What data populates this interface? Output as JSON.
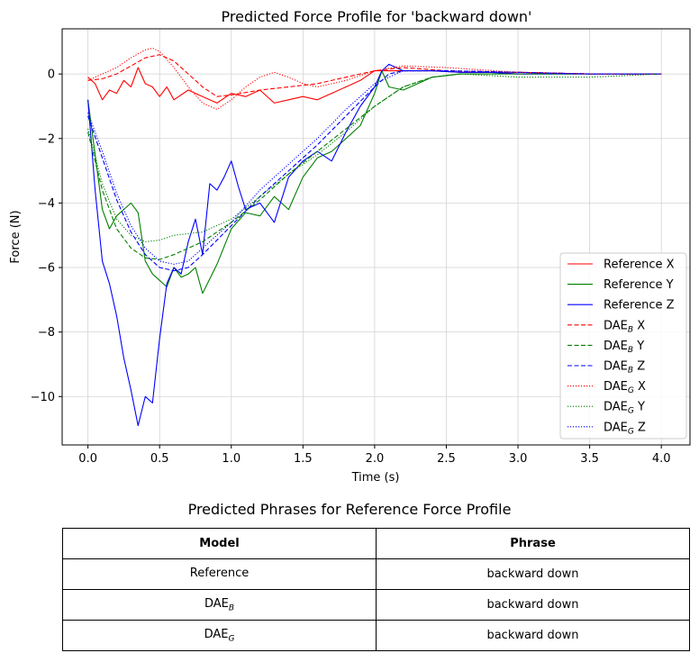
{
  "chart_data": {
    "type": "line",
    "title": "Predicted Force Profile for 'backward down'",
    "xlabel": "Time (s)",
    "ylabel": "Force (N)",
    "xlim": [
      -0.18,
      4.2
    ],
    "ylim": [
      -11.5,
      1.4
    ],
    "xticks": [
      0.0,
      0.5,
      1.0,
      1.5,
      2.0,
      2.5,
      3.0,
      3.5,
      4.0
    ],
    "yticks": [
      0,
      -2,
      -4,
      -6,
      -8,
      -10
    ],
    "xtick_labels": [
      "0.0",
      "0.5",
      "1.0",
      "1.5",
      "2.0",
      "2.5",
      "3.0",
      "3.5",
      "4.0"
    ],
    "ytick_labels": [
      "0",
      "−2",
      "−4",
      "−6",
      "−8",
      "−10"
    ],
    "grid": true,
    "legend_position": "lower-right",
    "series": [
      {
        "name": "Reference X",
        "color": "#ff0000",
        "style": "solid",
        "x": [
          0,
          0.05,
          0.1,
          0.15,
          0.2,
          0.25,
          0.3,
          0.35,
          0.4,
          0.45,
          0.5,
          0.55,
          0.6,
          0.7,
          0.8,
          0.9,
          1.0,
          1.1,
          1.2,
          1.3,
          1.4,
          1.5,
          1.6,
          1.7,
          1.8,
          1.9,
          2.0,
          2.1,
          2.2,
          2.4,
          2.6,
          2.8,
          3.0,
          3.5,
          4.0
        ],
        "y": [
          -0.1,
          -0.3,
          -0.8,
          -0.5,
          -0.6,
          -0.2,
          -0.4,
          0.2,
          -0.3,
          -0.4,
          -0.7,
          -0.4,
          -0.8,
          -0.5,
          -0.7,
          -0.9,
          -0.6,
          -0.7,
          -0.5,
          -0.9,
          -0.8,
          -0.7,
          -0.8,
          -0.6,
          -0.4,
          -0.2,
          0.1,
          0.1,
          0.1,
          0.1,
          0.05,
          0.05,
          0.05,
          0.0,
          0.0
        ]
      },
      {
        "name": "Reference Y",
        "color": "#008000",
        "style": "solid",
        "x": [
          0,
          0.05,
          0.1,
          0.15,
          0.2,
          0.25,
          0.3,
          0.35,
          0.4,
          0.45,
          0.5,
          0.55,
          0.6,
          0.65,
          0.7,
          0.75,
          0.8,
          0.9,
          1.0,
          1.1,
          1.2,
          1.3,
          1.4,
          1.5,
          1.6,
          1.7,
          1.8,
          1.9,
          2.0,
          2.05,
          2.1,
          2.2,
          2.4,
          2.6,
          2.8,
          3.0,
          3.5,
          4.0
        ],
        "y": [
          -0.8,
          -2.5,
          -4.2,
          -4.8,
          -4.4,
          -4.2,
          -4.0,
          -4.3,
          -5.8,
          -6.2,
          -6.4,
          -6.6,
          -6.0,
          -6.3,
          -6.2,
          -6.0,
          -6.8,
          -5.9,
          -4.8,
          -4.3,
          -4.4,
          -3.8,
          -4.2,
          -3.2,
          -2.6,
          -2.4,
          -2.0,
          -1.6,
          -0.6,
          0.1,
          -0.4,
          -0.5,
          -0.1,
          0.0,
          0.0,
          0.0,
          0.0,
          0.0
        ]
      },
      {
        "name": "Reference Z",
        "color": "#0000ff",
        "style": "solid",
        "x": [
          0,
          0.05,
          0.1,
          0.15,
          0.2,
          0.25,
          0.3,
          0.35,
          0.4,
          0.45,
          0.5,
          0.55,
          0.6,
          0.65,
          0.7,
          0.75,
          0.8,
          0.85,
          0.9,
          0.95,
          1.0,
          1.05,
          1.1,
          1.2,
          1.3,
          1.4,
          1.5,
          1.6,
          1.7,
          1.8,
          1.9,
          2.0,
          2.05,
          2.1,
          2.2,
          2.4,
          2.6,
          2.8,
          3.0,
          3.5,
          4.0
        ],
        "y": [
          -0.8,
          -3.6,
          -5.8,
          -6.5,
          -7.5,
          -8.8,
          -9.8,
          -10.9,
          -10.0,
          -10.2,
          -8.2,
          -6.5,
          -6.0,
          -6.2,
          -5.2,
          -4.5,
          -5.6,
          -3.4,
          -3.6,
          -3.2,
          -2.7,
          -3.5,
          -4.2,
          -4.0,
          -4.6,
          -3.2,
          -2.7,
          -2.4,
          -2.7,
          -1.8,
          -1.0,
          -0.4,
          0.1,
          0.3,
          0.1,
          0.1,
          0.05,
          0.05,
          0.0,
          0.0,
          0.0
        ]
      },
      {
        "name": "DAE_B X",
        "color": "#ff0000",
        "style": "dashed",
        "x": [
          0,
          0.1,
          0.2,
          0.3,
          0.4,
          0.5,
          0.6,
          0.7,
          0.8,
          0.9,
          1.0,
          1.2,
          1.4,
          1.6,
          1.8,
          2.0,
          2.2,
          2.5,
          3.0,
          3.5,
          4.0
        ],
        "y": [
          -0.2,
          -0.15,
          0.0,
          0.25,
          0.5,
          0.6,
          0.4,
          0.0,
          -0.4,
          -0.7,
          -0.65,
          -0.5,
          -0.4,
          -0.3,
          -0.1,
          0.1,
          0.2,
          0.1,
          0.05,
          0.0,
          0.0
        ]
      },
      {
        "name": "DAE_B Y",
        "color": "#008000",
        "style": "dashed",
        "x": [
          0,
          0.1,
          0.2,
          0.3,
          0.4,
          0.5,
          0.6,
          0.8,
          1.0,
          1.2,
          1.4,
          1.6,
          1.8,
          2.0,
          2.2,
          2.4,
          2.6,
          3.0,
          3.5,
          4.0
        ],
        "y": [
          -1.8,
          -3.6,
          -4.8,
          -5.4,
          -5.7,
          -5.75,
          -5.6,
          -5.2,
          -4.6,
          -3.9,
          -3.1,
          -2.4,
          -1.7,
          -1.0,
          -0.4,
          -0.1,
          0.0,
          0.0,
          0.0,
          0.0
        ]
      },
      {
        "name": "DAE_B Z",
        "color": "#0000ff",
        "style": "dashed",
        "x": [
          0,
          0.1,
          0.2,
          0.3,
          0.4,
          0.5,
          0.6,
          0.7,
          0.8,
          1.0,
          1.2,
          1.4,
          1.6,
          1.8,
          2.0,
          2.1,
          2.2,
          2.5,
          3.0,
          3.5,
          4.0
        ],
        "y": [
          -1.3,
          -2.6,
          -3.9,
          -4.9,
          -5.6,
          -6.0,
          -6.1,
          -6.0,
          -5.6,
          -4.7,
          -3.8,
          -3.0,
          -2.2,
          -1.3,
          -0.4,
          0.0,
          0.1,
          0.1,
          0.05,
          0.0,
          0.0
        ]
      },
      {
        "name": "DAE_G X",
        "color": "#ff0000",
        "style": "dotted",
        "x": [
          0,
          0.1,
          0.2,
          0.3,
          0.4,
          0.45,
          0.5,
          0.6,
          0.7,
          0.8,
          0.9,
          1.0,
          1.1,
          1.2,
          1.3,
          1.4,
          1.5,
          1.6,
          1.8,
          2.0,
          2.2,
          2.5,
          3.0,
          3.5,
          4.0
        ],
        "y": [
          -0.2,
          0.0,
          0.2,
          0.5,
          0.75,
          0.8,
          0.7,
          0.2,
          -0.4,
          -0.9,
          -1.1,
          -0.8,
          -0.4,
          -0.1,
          0.05,
          -0.1,
          -0.3,
          -0.4,
          -0.2,
          0.1,
          0.25,
          0.2,
          0.05,
          0.0,
          0.0
        ]
      },
      {
        "name": "DAE_G Y",
        "color": "#008000",
        "style": "dotted",
        "x": [
          0,
          0.1,
          0.2,
          0.3,
          0.4,
          0.5,
          0.6,
          0.8,
          1.0,
          1.2,
          1.4,
          1.6,
          1.8,
          2.0,
          2.2,
          2.4,
          2.6,
          3.0,
          3.5,
          4.0
        ],
        "y": [
          -1.7,
          -3.4,
          -4.5,
          -5.0,
          -5.2,
          -5.15,
          -5.0,
          -4.9,
          -4.5,
          -3.8,
          -3.1,
          -2.5,
          -1.8,
          -1.0,
          -0.4,
          -0.1,
          0.0,
          -0.1,
          -0.1,
          0.0
        ]
      },
      {
        "name": "DAE_G Z",
        "color": "#0000ff",
        "style": "dotted",
        "x": [
          0,
          0.1,
          0.2,
          0.3,
          0.4,
          0.5,
          0.6,
          0.7,
          0.8,
          1.0,
          1.2,
          1.4,
          1.6,
          1.8,
          2.0,
          2.2,
          2.5,
          3.0,
          3.5,
          4.0
        ],
        "y": [
          -1.2,
          -2.4,
          -3.7,
          -4.7,
          -5.4,
          -5.8,
          -5.9,
          -5.8,
          -5.4,
          -4.6,
          -3.6,
          -2.8,
          -2.0,
          -1.1,
          -0.3,
          0.1,
          0.1,
          0.05,
          0.0,
          0.0
        ]
      }
    ]
  },
  "legend": [
    {
      "base": "Reference",
      "sub": "",
      "axis": "X"
    },
    {
      "base": "Reference",
      "sub": "",
      "axis": "Y"
    },
    {
      "base": "Reference",
      "sub": "",
      "axis": "Z"
    },
    {
      "base": "DAE",
      "sub": "B",
      "axis": "X"
    },
    {
      "base": "DAE",
      "sub": "B",
      "axis": "Y"
    },
    {
      "base": "DAE",
      "sub": "B",
      "axis": "Z"
    },
    {
      "base": "DAE",
      "sub": "G",
      "axis": "X"
    },
    {
      "base": "DAE",
      "sub": "G",
      "axis": "Y"
    },
    {
      "base": "DAE",
      "sub": "G",
      "axis": "Z"
    }
  ],
  "table": {
    "title": "Predicted Phrases for Reference Force Profile",
    "headers": [
      "Model",
      "Phrase"
    ],
    "rows": [
      {
        "model": "Reference",
        "model_sub": "",
        "phrase": "backward down"
      },
      {
        "model": "DAE",
        "model_sub": "B",
        "phrase": "backward down"
      },
      {
        "model": "DAE",
        "model_sub": "G",
        "phrase": "backward down"
      }
    ]
  }
}
